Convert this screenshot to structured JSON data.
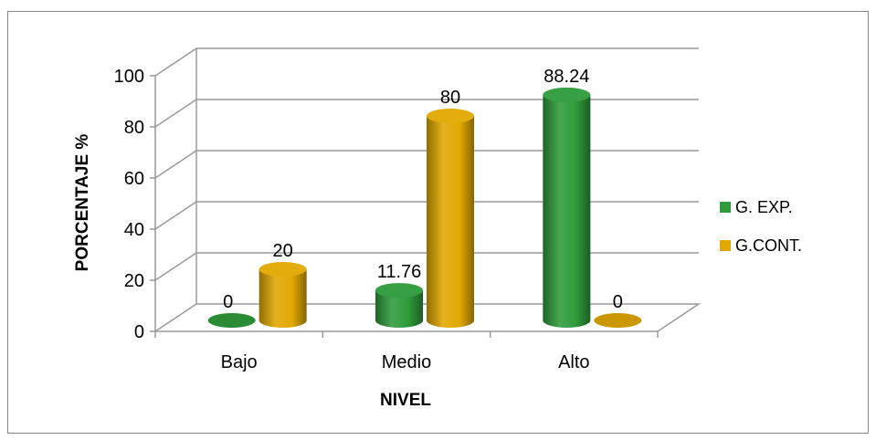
{
  "chart_data": {
    "type": "bar",
    "categories": [
      "Bajo",
      "Medio",
      "Alto"
    ],
    "series": [
      {
        "name": "G. EXP.",
        "values": [
          0,
          11.76,
          88.24
        ],
        "color": "#2E9B3A"
      },
      {
        "name": "G.CONT.",
        "values": [
          20,
          80,
          0
        ],
        "color": "#E0A800"
      }
    ],
    "data_labels": [
      [
        "0",
        "11.76",
        "88.24"
      ],
      [
        "20",
        "80",
        "0"
      ]
    ],
    "xlabel": "NIVEL",
    "ylabel": "PORCENTAJE %",
    "ylim": [
      0,
      100
    ],
    "yticks": [
      "0",
      "20",
      "40",
      "60",
      "80",
      "100"
    ],
    "grid": true,
    "legend": "right",
    "style": "3d-cylinder"
  }
}
